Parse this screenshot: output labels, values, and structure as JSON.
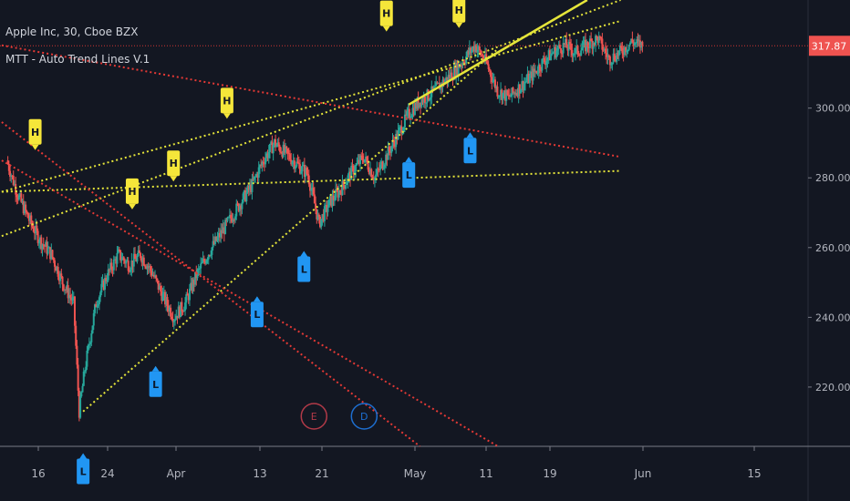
{
  "legend": {
    "title": "Apple Inc, 30, Cboe BZX",
    "indicator": "MTT - Auto Trend Lines V.1"
  },
  "colors": {
    "background": "#131722",
    "up": "#26a69a",
    "down": "#ef5350",
    "yellow_line": "#e5e53a",
    "red_line": "#e53935",
    "high_marker": "#f5e63a",
    "low_marker": "#2196f3",
    "price_label": "#ef5350"
  },
  "chart_data": {
    "type": "candlestick",
    "title": "",
    "ylim": [
      203,
      331
    ],
    "y_ticks": [
      {
        "value": 220,
        "label": "220.00"
      },
      {
        "value": 240,
        "label": "240.00"
      },
      {
        "value": 260,
        "label": "260.00"
      },
      {
        "value": 280,
        "label": "280.00"
      },
      {
        "value": 300,
        "label": "300.00"
      }
    ],
    "x_ticks": [
      "16",
      "24",
      "Apr",
      "13",
      "21",
      "May",
      "11",
      "19",
      "Jun",
      "15"
    ],
    "last_price": {
      "value": 317.87,
      "label": "317.87"
    },
    "price_path": [
      [
        0,
        285
      ],
      [
        1,
        275
      ],
      [
        2,
        268
      ],
      [
        3,
        262
      ],
      [
        4,
        258
      ],
      [
        5,
        250
      ],
      [
        6,
        244
      ],
      [
        6.5,
        213
      ],
      [
        7,
        225
      ],
      [
        8,
        244
      ],
      [
        9,
        252
      ],
      [
        10,
        258
      ],
      [
        11,
        255
      ],
      [
        12,
        258
      ],
      [
        13,
        253
      ],
      [
        14,
        246
      ],
      [
        15,
        240
      ],
      [
        16,
        244
      ],
      [
        17,
        252
      ],
      [
        18,
        258
      ],
      [
        19,
        263
      ],
      [
        20,
        268
      ],
      [
        21,
        273
      ],
      [
        22,
        278
      ],
      [
        23,
        285
      ],
      [
        24,
        290
      ],
      [
        25,
        287
      ],
      [
        26,
        284
      ],
      [
        27,
        281
      ],
      [
        28,
        267
      ],
      [
        29,
        273
      ],
      [
        30,
        277
      ],
      [
        31,
        282
      ],
      [
        32,
        286
      ],
      [
        33,
        280
      ],
      [
        34,
        286
      ],
      [
        35,
        292
      ],
      [
        36,
        298
      ],
      [
        37,
        302
      ],
      [
        38,
        304
      ],
      [
        39,
        307
      ],
      [
        40,
        310
      ],
      [
        41,
        314
      ],
      [
        42,
        318
      ],
      [
        43,
        313
      ],
      [
        44,
        305
      ],
      [
        45,
        303
      ],
      [
        46,
        306
      ],
      [
        47,
        309
      ],
      [
        48,
        313
      ],
      [
        49,
        316
      ],
      [
        50,
        318
      ],
      [
        51,
        316
      ],
      [
        52,
        318
      ],
      [
        53,
        320
      ],
      [
        54,
        314
      ],
      [
        55,
        316
      ],
      [
        56,
        319
      ],
      [
        57,
        317.87
      ]
    ],
    "markers": [
      {
        "type": "high",
        "label": "H",
        "x": 2.5,
        "price": 289
      },
      {
        "type": "high",
        "label": "H",
        "x": 11.2,
        "price": 272
      },
      {
        "type": "high",
        "label": "H",
        "x": 14.9,
        "price": 280
      },
      {
        "type": "high",
        "label": "H",
        "x": 19.7,
        "price": 298
      },
      {
        "type": "high",
        "label": "H",
        "x": 34.0,
        "price": 323
      },
      {
        "type": "high",
        "label": "H",
        "x": 40.5,
        "price": 324
      },
      {
        "type": "low",
        "label": "L",
        "x": 6.8,
        "price": 200
      },
      {
        "type": "low",
        "label": "L",
        "x": 13.3,
        "price": 225
      },
      {
        "type": "low",
        "label": "L",
        "x": 22.4,
        "price": 245
      },
      {
        "type": "low",
        "label": "L",
        "x": 26.6,
        "price": 258
      },
      {
        "type": "low",
        "label": "L",
        "x": 36.0,
        "price": 285
      },
      {
        "type": "low",
        "label": "L",
        "x": 41.5,
        "price": 292
      }
    ],
    "event_badges": [
      {
        "label": "E",
        "x": 27.5,
        "color": "#b23a48"
      },
      {
        "label": "D",
        "x": 32.0,
        "color": "#1e6fd1"
      }
    ],
    "trend_lines": [
      {
        "color": "yellow",
        "style": "dotted",
        "from": [
          -0.5,
          263.3
        ],
        "to": [
          55,
          331
        ]
      },
      {
        "color": "yellow",
        "style": "dotted",
        "from": [
          -0.5,
          276
        ],
        "to": [
          55,
          325
        ]
      },
      {
        "color": "yellow",
        "style": "dotted",
        "from": [
          6.8,
          213
        ],
        "to": [
          44,
          317
        ]
      },
      {
        "color": "yellow",
        "style": "dotted",
        "from": [
          -0.5,
          276
        ],
        "to": [
          55,
          282
        ]
      },
      {
        "color": "yellow",
        "style": "solid",
        "from": [
          36,
          301
        ],
        "to": [
          52,
          331
        ]
      },
      {
        "color": "red",
        "style": "dotted",
        "from": [
          -0.5,
          318
        ],
        "to": [
          55,
          286
        ]
      },
      {
        "color": "red",
        "style": "dotted",
        "from": [
          -0.5,
          296
        ],
        "to": [
          37,
          203
        ]
      },
      {
        "color": "red",
        "style": "dotted",
        "from": [
          -0.5,
          285
        ],
        "to": [
          44,
          203
        ]
      }
    ],
    "price_line": {
      "color": "red",
      "value": 317.87
    }
  }
}
